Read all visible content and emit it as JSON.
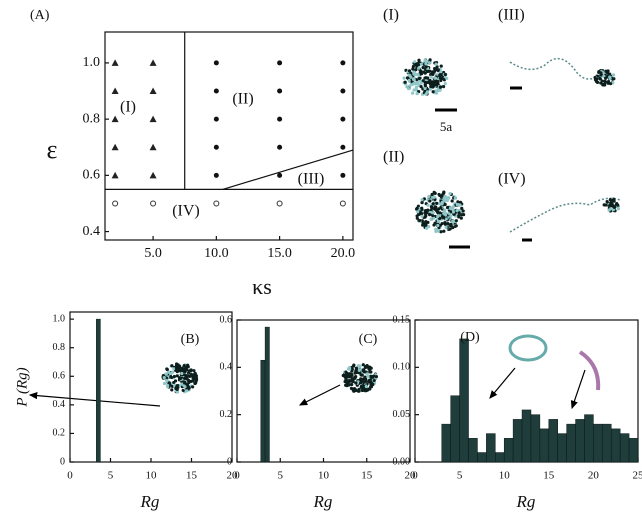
{
  "chart_data": [
    {
      "type": "scatter",
      "panel_label": "(A)",
      "x_label": "κs",
      "y_label": "ε",
      "xlim": [
        1.2,
        20.8
      ],
      "ylim": [
        0.37,
        1.11
      ],
      "xticks": [
        {
          "value": 5,
          "label": "5.0"
        },
        {
          "value": 10,
          "label": "10.0"
        },
        {
          "value": 15,
          "label": "15.0"
        },
        {
          "value": 20,
          "label": "20.0"
        }
      ],
      "yticks": [
        0.4,
        0.6,
        0.8,
        {
          "value": 1,
          "label": "1.0"
        }
      ],
      "series": [
        {
          "marker": "triangle",
          "color": "#222",
          "x": [
            2,
            2,
            2,
            2,
            2,
            5,
            5,
            5,
            5,
            5
          ],
          "values": [
            1.0,
            0.9,
            0.8,
            0.7,
            0.6,
            1.0,
            0.9,
            0.8,
            0.7,
            0.6
          ]
        },
        {
          "marker": "dot",
          "color": "#111",
          "x": [
            10,
            10,
            10,
            10,
            10,
            15,
            15,
            15,
            15,
            15,
            20,
            20,
            20,
            20,
            20
          ],
          "values": [
            1.0,
            0.9,
            0.8,
            0.7,
            0.6,
            1.0,
            0.9,
            0.8,
            0.7,
            0.6,
            1.0,
            0.9,
            0.8,
            0.7,
            0.6
          ]
        },
        {
          "marker": "circle",
          "color": "#333",
          "x": [
            2,
            5,
            10,
            15,
            20
          ],
          "values": [
            0.5,
            0.5,
            0.5,
            0.5,
            0.5
          ]
        }
      ],
      "boundaries": [
        {
          "x": [
            7.5,
            7.5
          ],
          "y": [
            0.55,
            1.11
          ]
        },
        {
          "x": [
            1.2,
            20.8
          ],
          "y": [
            0.55,
            0.55
          ]
        },
        {
          "x": [
            10.5,
            20.8
          ],
          "y": [
            0.55,
            0.69
          ]
        }
      ],
      "annotations": [
        "(I)",
        "(II)",
        "(III)",
        "(IV)"
      ]
    },
    {
      "type": "bar",
      "panel_label": "(B)",
      "x_label": "Rg",
      "y_label": "P (Rg)",
      "color": "#1f3d3a",
      "xlim": [
        0,
        20
      ],
      "ylim": [
        0,
        1.05
      ],
      "xticks": [
        0,
        5,
        10,
        15,
        20
      ],
      "yticks": [
        0,
        0.2,
        0.4,
        0.6,
        0.8,
        {
          "value": 1,
          "label": "1.0"
        }
      ],
      "bar_width": 0.5,
      "x": [
        3.5
      ],
      "values": [
        1.0
      ]
    },
    {
      "type": "bar",
      "panel_label": "(C)",
      "x_label": "Rg",
      "color": "#1f3d3a",
      "xlim": [
        0,
        20
      ],
      "ylim": [
        0,
        0.6
      ],
      "xticks": [
        0,
        5,
        10,
        15,
        20
      ],
      "yticks": [
        0,
        0.2,
        0.4,
        0.6
      ],
      "bar_width": 0.5,
      "x": [
        3.0,
        3.5
      ],
      "values": [
        0.43,
        0.57
      ]
    },
    {
      "type": "bar",
      "panel_label": "(D)",
      "x_label": "Rg",
      "color": "#1f3d3a",
      "xlim": [
        0,
        25
      ],
      "ylim": [
        0,
        0.15
      ],
      "xticks": [
        0,
        5,
        10,
        15,
        20,
        25
      ],
      "yticks": [
        {
          "value": 0,
          "label": "0.00"
        },
        0.05,
        {
          "value": 0.1,
          "label": "0.10"
        },
        0.15
      ],
      "bar_width": 1,
      "x": [
        3.5,
        4.5,
        5.5,
        6.5,
        7.5,
        8.5,
        9.5,
        10.5,
        11.5,
        12.5,
        13.5,
        14.5,
        15.5,
        16.5,
        17.5,
        18.5,
        19.5,
        20.5,
        21.5,
        22.5,
        23.5,
        24.5
      ],
      "values": [
        0.04,
        0.07,
        0.13,
        0.025,
        0.01,
        0.03,
        0.01,
        0.025,
        0.045,
        0.055,
        0.05,
        0.035,
        0.045,
        0.03,
        0.04,
        0.045,
        0.05,
        0.04,
        0.04,
        0.035,
        0.03,
        0.025
      ]
    }
  ],
  "insets": {
    "labels": [
      "(I)",
      "(III)",
      "(II)",
      "(IV)"
    ],
    "scale_label": "5a"
  }
}
